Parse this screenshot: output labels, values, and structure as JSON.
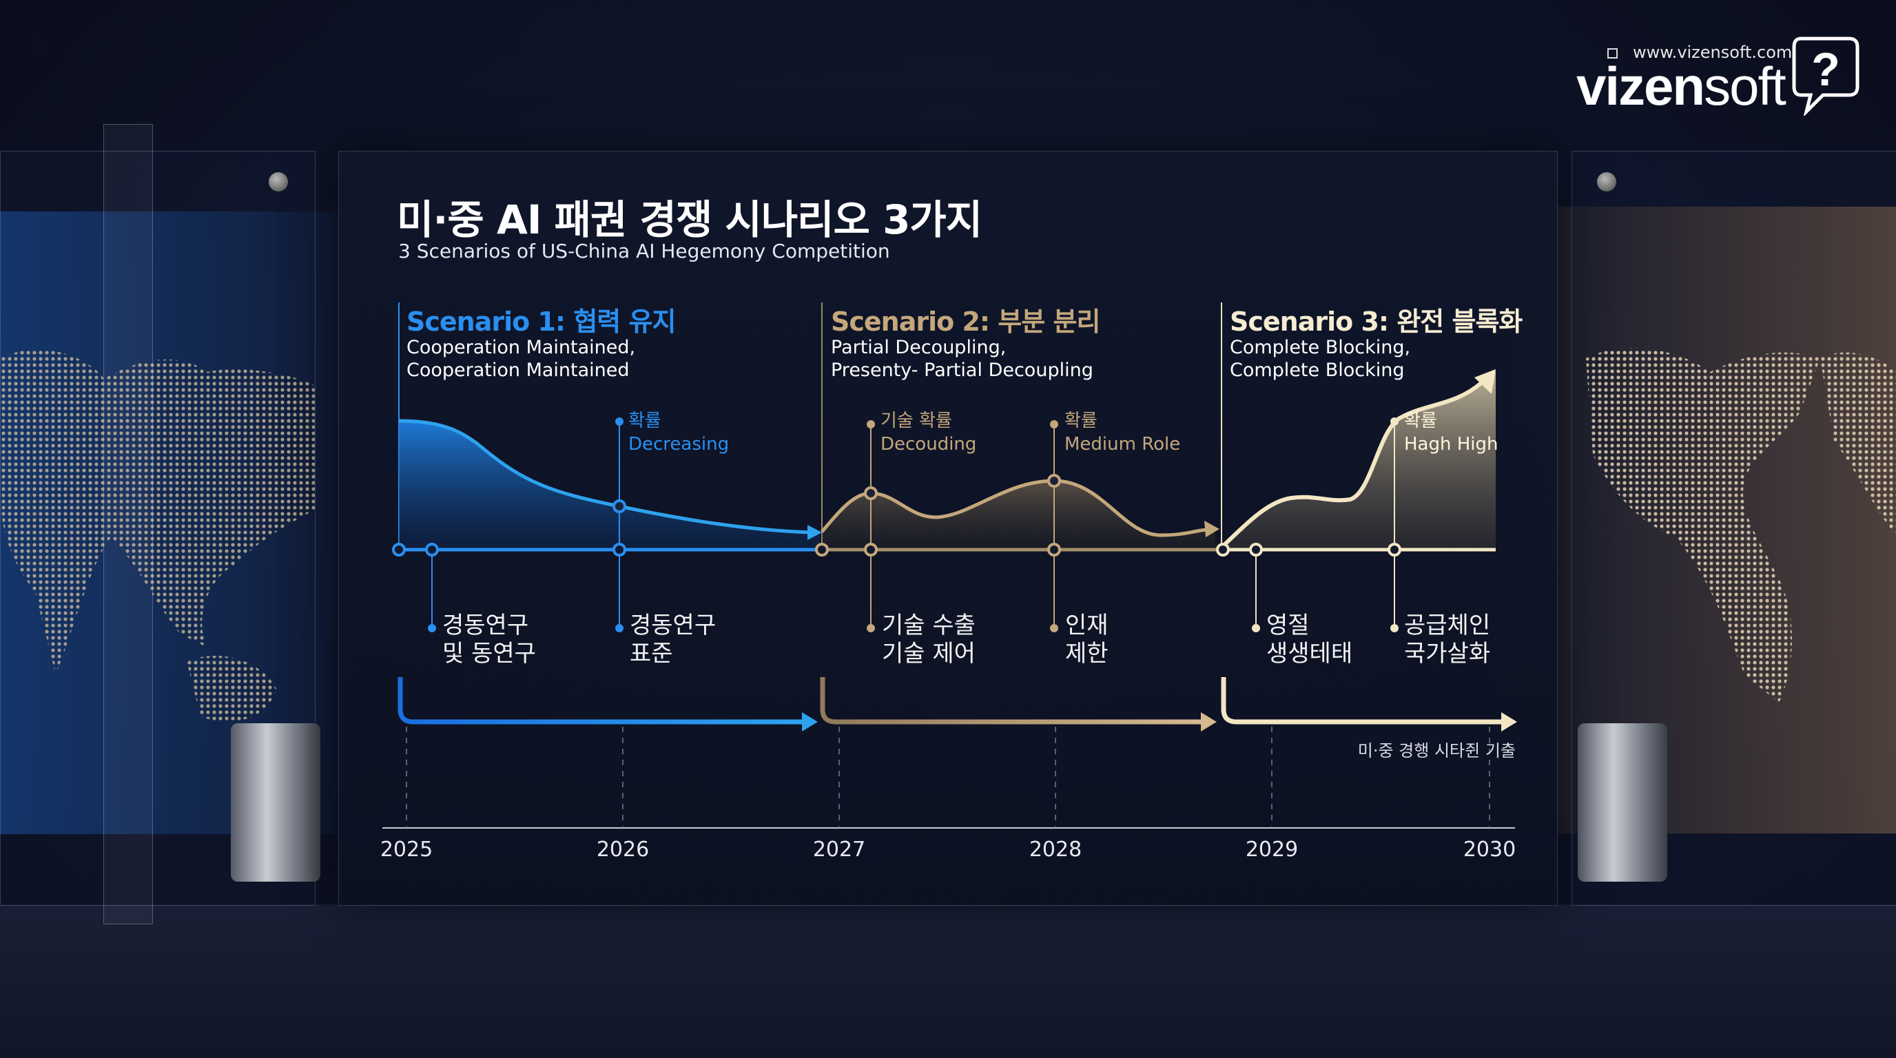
{
  "colors": {
    "scenario1": "#2a8ff0",
    "scenario2": "#c4a77b",
    "scenario3": "#f3e6c4",
    "axis": "#d8dbe3"
  },
  "logo": {
    "url": "www.vizensoft.com",
    "brand_bold": "vizen",
    "brand_light": "soft",
    "icon": "question-speech-bubble-icon"
  },
  "header": {
    "title": "미·중 AI 패권 경쟁 시나리오 3가지",
    "subtitle": "3 Scenarios of US-China AI Hegemony Competition"
  },
  "scenarios": [
    {
      "heading": "Scenario 1: 협력 유지",
      "desc1": "Cooperation Maintained,",
      "desc2": "Cooperation Maintained",
      "marker": {
        "ko": "확률",
        "en": "Decreasing"
      },
      "events": [
        {
          "l1": "경동연구",
          "l2": "및 동연구"
        },
        {
          "l1": "경동연구",
          "l2": "표준"
        }
      ]
    },
    {
      "heading": "Scenario 2: 부분 분리",
      "desc1": "Partial Decoupling,",
      "desc2": "Presenty- Partial Decoupling",
      "markers": [
        {
          "ko": "기술 확률",
          "en": "Decouding"
        },
        {
          "ko": "확률",
          "en": "Medium Role"
        }
      ],
      "events": [
        {
          "l1": "기술 수출",
          "l2": "기술 제어"
        },
        {
          "l1": "인재",
          "l2": "제한"
        }
      ]
    },
    {
      "heading": "Scenario 3: 완전 블록화",
      "desc1": "Complete Blocking,",
      "desc2": "Complete Blocking",
      "marker": {
        "ko": "확률",
        "en": "Hagh High"
      },
      "events": [
        {
          "l1": "영절",
          "l2": "생생테태"
        },
        {
          "l1": "공급체인",
          "l2": "국가살화"
        }
      ]
    }
  ],
  "footnote": "미·중 경행 시타쥔 기출",
  "timeline": {
    "years": [
      "2025",
      "2026",
      "2027",
      "2028",
      "2029",
      "2030"
    ]
  }
}
